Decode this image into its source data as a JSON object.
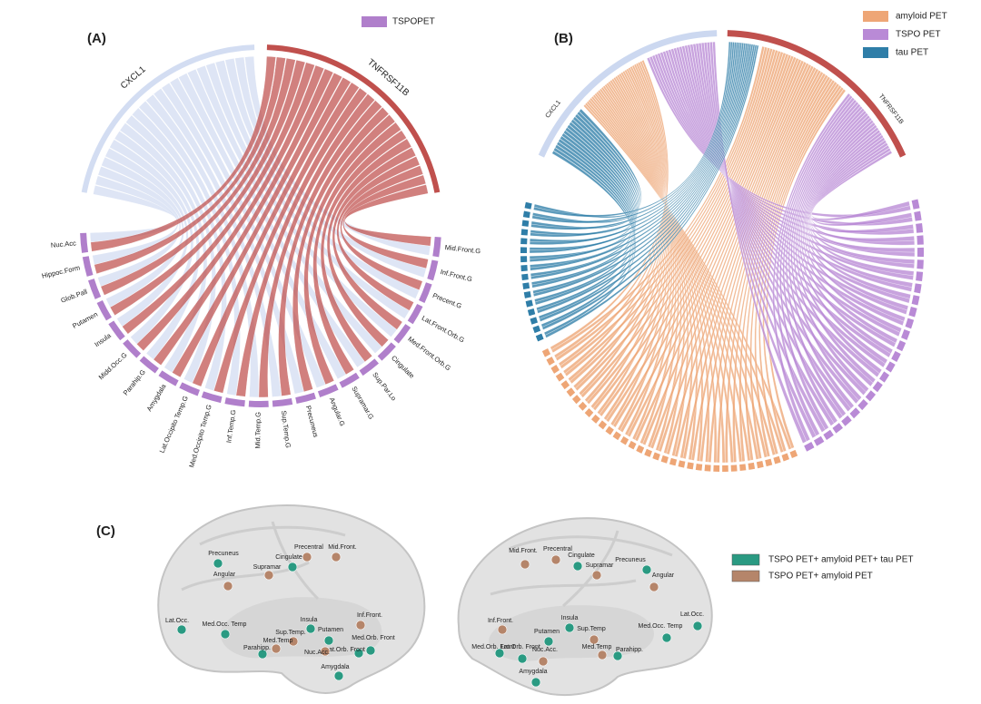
{
  "panel_a": {
    "label": "(A)",
    "legend": {
      "label": "TSPOPET",
      "color": "#b07fcb"
    },
    "genes": [
      {
        "name": "CXCL1",
        "color": "#d3ddf2"
      },
      {
        "name": "TNFRSF11B",
        "color": "#c0504d"
      }
    ],
    "regions": [
      "Nuc.Acc",
      "Hippoc.Form",
      "Glob.Pall",
      "Putamen",
      "Insula",
      "Midd.Occ.G",
      "Parahip.G",
      "Amygdala",
      "Lat.Occipito Temp.G",
      "Med.Occipito Temp.G",
      "Inf.Temp.G",
      "Mid.Temp.G",
      "Sup.Temp.G",
      "Precuneus",
      "Angular.G",
      "Supramar.G",
      "Sup.Par.Lo",
      "Cingulate",
      "Med.Front.Orb.G",
      "Lat.Front.Orb.G",
      "Precent.G",
      "Inf.Front.G",
      "Mid.Front.G"
    ]
  },
  "panel_b": {
    "label": "(B)",
    "legend": [
      {
        "label": "amyloid PET",
        "color": "#eea676"
      },
      {
        "label": "TSPO PET",
        "color": "#b98ad6"
      },
      {
        "label": "tau PET",
        "color": "#2f7ea8"
      }
    ],
    "genes": [
      {
        "name": "CXCL1",
        "color": "#ccd8f0"
      },
      {
        "name": "TNFRSF11B",
        "color": "#c0504d"
      }
    ]
  },
  "panel_c": {
    "label": "(C)",
    "groups": [
      {
        "legend": "TSPO PET+ amyloid PET+ tau PET",
        "color": "#2a9a82",
        "left": [
          "Precuneus",
          "Cingulate",
          "Lat.Occ.",
          "Med.Occ. Temp",
          "Insula",
          "Putamen",
          "Med.Orb. Front",
          "Parahipp.",
          "Lat.Orb. Front",
          "Amygdala"
        ],
        "right": [
          "Cingulate",
          "Precuneus",
          "Lat.Occ.",
          "Insula",
          "Putamen",
          "Med.Occ. Temp",
          "Med.Orb. Front",
          "Lat.Orb. Front",
          "Parahipp.",
          "Amygdala"
        ]
      },
      {
        "legend": "TSPO PET+ amyloid PET",
        "color": "#b5856a",
        "left": [
          "Angular",
          "Supramar",
          "Precentral",
          "Mid.Front.",
          "Inf.Front.",
          "Sup.Temp.",
          "Med.Temp",
          "Nuc.Acc."
        ],
        "right": [
          "Mid.Front.",
          "Precentral",
          "Supramar",
          "Angular",
          "Inf.Front.",
          "Sup.Temp",
          "Nuc.Acc.",
          "Med.Temp"
        ]
      }
    ]
  }
}
